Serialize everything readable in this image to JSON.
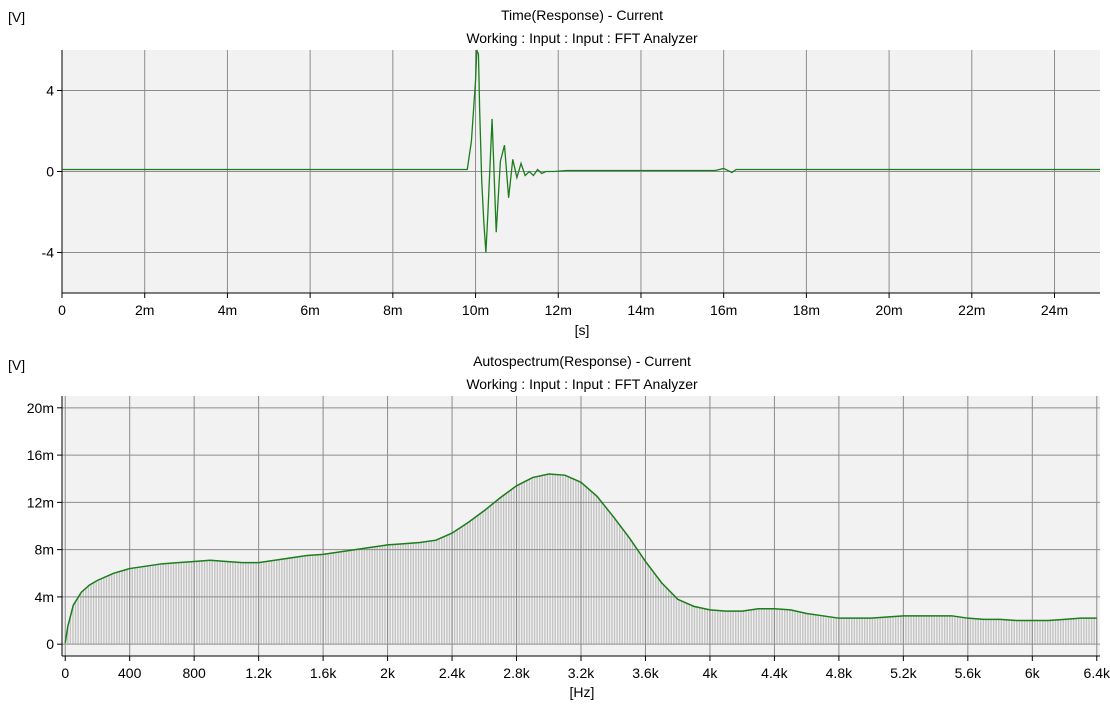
{
  "colors": {
    "trace": "#1b7d1b",
    "plot_bg": "#f2f2f2",
    "grid": "#8c8c8c",
    "bars": "#c4c4c4"
  },
  "chart_data": [
    {
      "type": "line",
      "unit_label": "[V]",
      "title": "Time(Response) - Current",
      "subtitle": "Working : Input : Input : FFT Analyzer",
      "xlabel": "[s]",
      "xlim": [
        0,
        0.0251
      ],
      "ylim": [
        -6,
        6
      ],
      "x_ticks": [
        0,
        0.002,
        0.004,
        0.006,
        0.008,
        0.01,
        0.012,
        0.014,
        0.016,
        0.018,
        0.02,
        0.022,
        0.024
      ],
      "x_tick_labels": [
        "0",
        "2m",
        "4m",
        "6m",
        "8m",
        "10m",
        "12m",
        "14m",
        "16m",
        "18m",
        "20m",
        "22m",
        "24m"
      ],
      "y_ticks": [
        -4,
        0,
        4
      ],
      "y_tick_labels": [
        "-4",
        "0",
        "4"
      ],
      "grid": true,
      "series": [
        {
          "x": [
            0,
            0.0098,
            0.0099,
            0.01,
            0.01003,
            0.01007,
            0.0101,
            0.01015,
            0.0102,
            0.01025,
            0.0103,
            0.0104,
            0.0105,
            0.0106,
            0.0107,
            0.0108,
            0.0109,
            0.011,
            0.0111,
            0.0112,
            0.0113,
            0.0114,
            0.0115,
            0.0116,
            0.0117,
            0.0119,
            0.0122,
            0.0158,
            0.016,
            0.0162,
            0.0163,
            0.0251
          ],
          "y": [
            0.1,
            0.1,
            1.5,
            4.5,
            6.0,
            5.8,
            3.0,
            -0.5,
            -2.5,
            -4.0,
            -2.0,
            2.6,
            -3.0,
            0.5,
            1.3,
            -1.3,
            0.6,
            -0.3,
            0.4,
            -0.2,
            0.0,
            -0.2,
            0.1,
            -0.1,
            0.0,
            0.0,
            0.05,
            0.05,
            0.15,
            -0.05,
            0.1,
            0.1
          ]
        }
      ]
    },
    {
      "type": "area",
      "unit_label": "[V]",
      "title": "Autospectrum(Response) - Current",
      "subtitle": "Working : Input : Input : FFT Analyzer",
      "xlabel": "[Hz]",
      "xlim": [
        -20,
        6420
      ],
      "ylim": [
        -0.001,
        0.021
      ],
      "x_ticks": [
        0,
        400,
        800,
        1200,
        1600,
        2000,
        2400,
        2800,
        3200,
        3600,
        4000,
        4400,
        4800,
        5200,
        5600,
        6000,
        6400
      ],
      "x_tick_labels": [
        "0",
        "400",
        "800",
        "1.2k",
        "1.6k",
        "2k",
        "2.4k",
        "2.8k",
        "3.2k",
        "3.6k",
        "4k",
        "4.4k",
        "4.8k",
        "5.2k",
        "5.6k",
        "6k",
        "6.4k"
      ],
      "y_ticks": [
        0,
        0.004,
        0.008,
        0.012,
        0.016,
        0.02
      ],
      "y_tick_labels": [
        "0",
        "4m",
        "8m",
        "12m",
        "16m",
        "20m"
      ],
      "grid": true,
      "bar_step_hz": 16,
      "series": [
        {
          "x": [
            0,
            16,
            50,
            100,
            150,
            200,
            300,
            400,
            500,
            600,
            700,
            800,
            900,
            1000,
            1100,
            1200,
            1300,
            1400,
            1500,
            1600,
            1700,
            1800,
            1900,
            2000,
            2100,
            2200,
            2300,
            2400,
            2500,
            2600,
            2700,
            2800,
            2900,
            3000,
            3100,
            3200,
            3300,
            3400,
            3500,
            3600,
            3700,
            3800,
            3900,
            4000,
            4100,
            4200,
            4300,
            4400,
            4500,
            4600,
            4700,
            4800,
            4900,
            5000,
            5100,
            5200,
            5300,
            5400,
            5500,
            5600,
            5700,
            5800,
            5900,
            6000,
            6100,
            6200,
            6300,
            6400
          ],
          "y": [
            0.0001,
            0.0015,
            0.0033,
            0.0044,
            0.005,
            0.0054,
            0.006,
            0.0064,
            0.0066,
            0.0068,
            0.0069,
            0.007,
            0.0071,
            0.007,
            0.0069,
            0.0069,
            0.0071,
            0.0073,
            0.0075,
            0.0076,
            0.0078,
            0.008,
            0.0082,
            0.0084,
            0.0085,
            0.0086,
            0.0088,
            0.0094,
            0.0103,
            0.0113,
            0.0124,
            0.0134,
            0.0141,
            0.0144,
            0.0143,
            0.0137,
            0.0125,
            0.0108,
            0.009,
            0.007,
            0.0052,
            0.0038,
            0.0032,
            0.0029,
            0.0028,
            0.0028,
            0.003,
            0.003,
            0.0029,
            0.0026,
            0.0024,
            0.0022,
            0.0022,
            0.0022,
            0.0023,
            0.0024,
            0.0024,
            0.0024,
            0.0024,
            0.0022,
            0.0021,
            0.0021,
            0.002,
            0.002,
            0.002,
            0.0021,
            0.0022,
            0.0022
          ]
        }
      ]
    }
  ]
}
